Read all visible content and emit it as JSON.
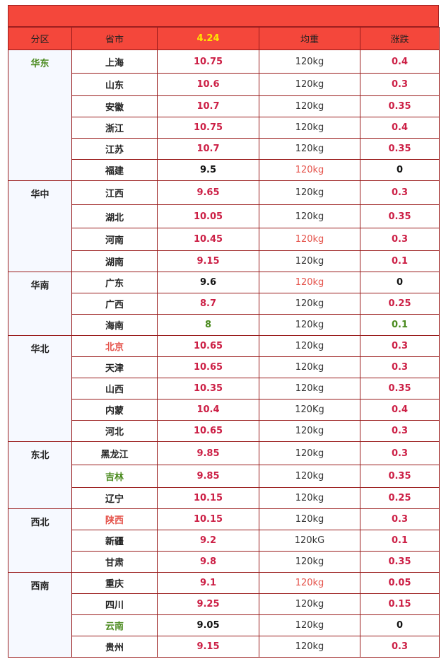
{
  "header": {
    "columns": [
      "分区",
      "省市",
      "4.24",
      "均重",
      "涨跌"
    ]
  },
  "regions": [
    {
      "name": "华东",
      "rows": [
        [
          "上海",
          "10.75",
          "120kg",
          "0.4"
        ],
        [
          "山东",
          "10.6",
          "120kg",
          "0.3"
        ],
        [
          "安徽",
          "10.7",
          "120kg",
          "0.35"
        ],
        [
          "浙江",
          "10.75",
          "120kg",
          "0.4"
        ],
        [
          "江苏",
          "10.7",
          "120kg",
          "0.35"
        ],
        [
          "福建",
          "9.5",
          "120kg",
          "0"
        ]
      ]
    },
    {
      "name": "华中",
      "rows": [
        [
          "江西",
          "9.65",
          "120kg",
          "0.3"
        ],
        [
          "湖北",
          "10.05",
          "120kg",
          "0.35"
        ],
        [
          "河南",
          "10.45",
          "120kg",
          "0.3"
        ],
        [
          "湖南",
          "9.15",
          "120kg",
          "0.1"
        ]
      ]
    },
    {
      "name": "华南",
      "rows": [
        [
          "广东",
          "9.6",
          "120kg",
          "0"
        ],
        [
          "广西",
          "8.7",
          "120kg",
          "0.25"
        ],
        [
          "海南",
          "8",
          "120kg",
          "0.1"
        ]
      ]
    },
    {
      "name": "华北",
      "rows": [
        [
          "北京",
          "10.65",
          "120kg",
          "0.3"
        ],
        [
          "天津",
          "10.65",
          "120kg",
          "0.3"
        ],
        [
          "山西",
          "10.35",
          "120kg",
          "0.35"
        ],
        [
          "内蒙",
          "10.4",
          "120Kg",
          "0.4"
        ],
        [
          "河北",
          "10.65",
          "120kg",
          "0.3"
        ]
      ]
    },
    {
      "name": "东北",
      "rows": [
        [
          "黑龙江",
          "9.85",
          "120kg",
          "0.3"
        ],
        [
          "吉林",
          "9.85",
          "120kg",
          "0.35"
        ],
        [
          "辽宁",
          "10.15",
          "120kg",
          "0.25"
        ]
      ]
    },
    {
      "name": "西北",
      "rows": [
        [
          "陕西",
          "10.15",
          "120kg",
          "0.3"
        ],
        [
          "新疆",
          "9.2",
          "120kG",
          "0.1"
        ],
        [
          "甘肃",
          "9.8",
          "120kg",
          "0.35"
        ]
      ]
    },
    {
      "name": "西南",
      "rows": [
        [
          "重庆",
          "9.1",
          "120kg",
          "0.05"
        ],
        [
          "四川",
          "9.25",
          "120kg",
          "0.15"
        ],
        [
          "云南",
          "9.05",
          "120kg",
          "0"
        ],
        [
          "贵州",
          "9.15",
          "120kg",
          "0.3"
        ]
      ]
    }
  ]
}
